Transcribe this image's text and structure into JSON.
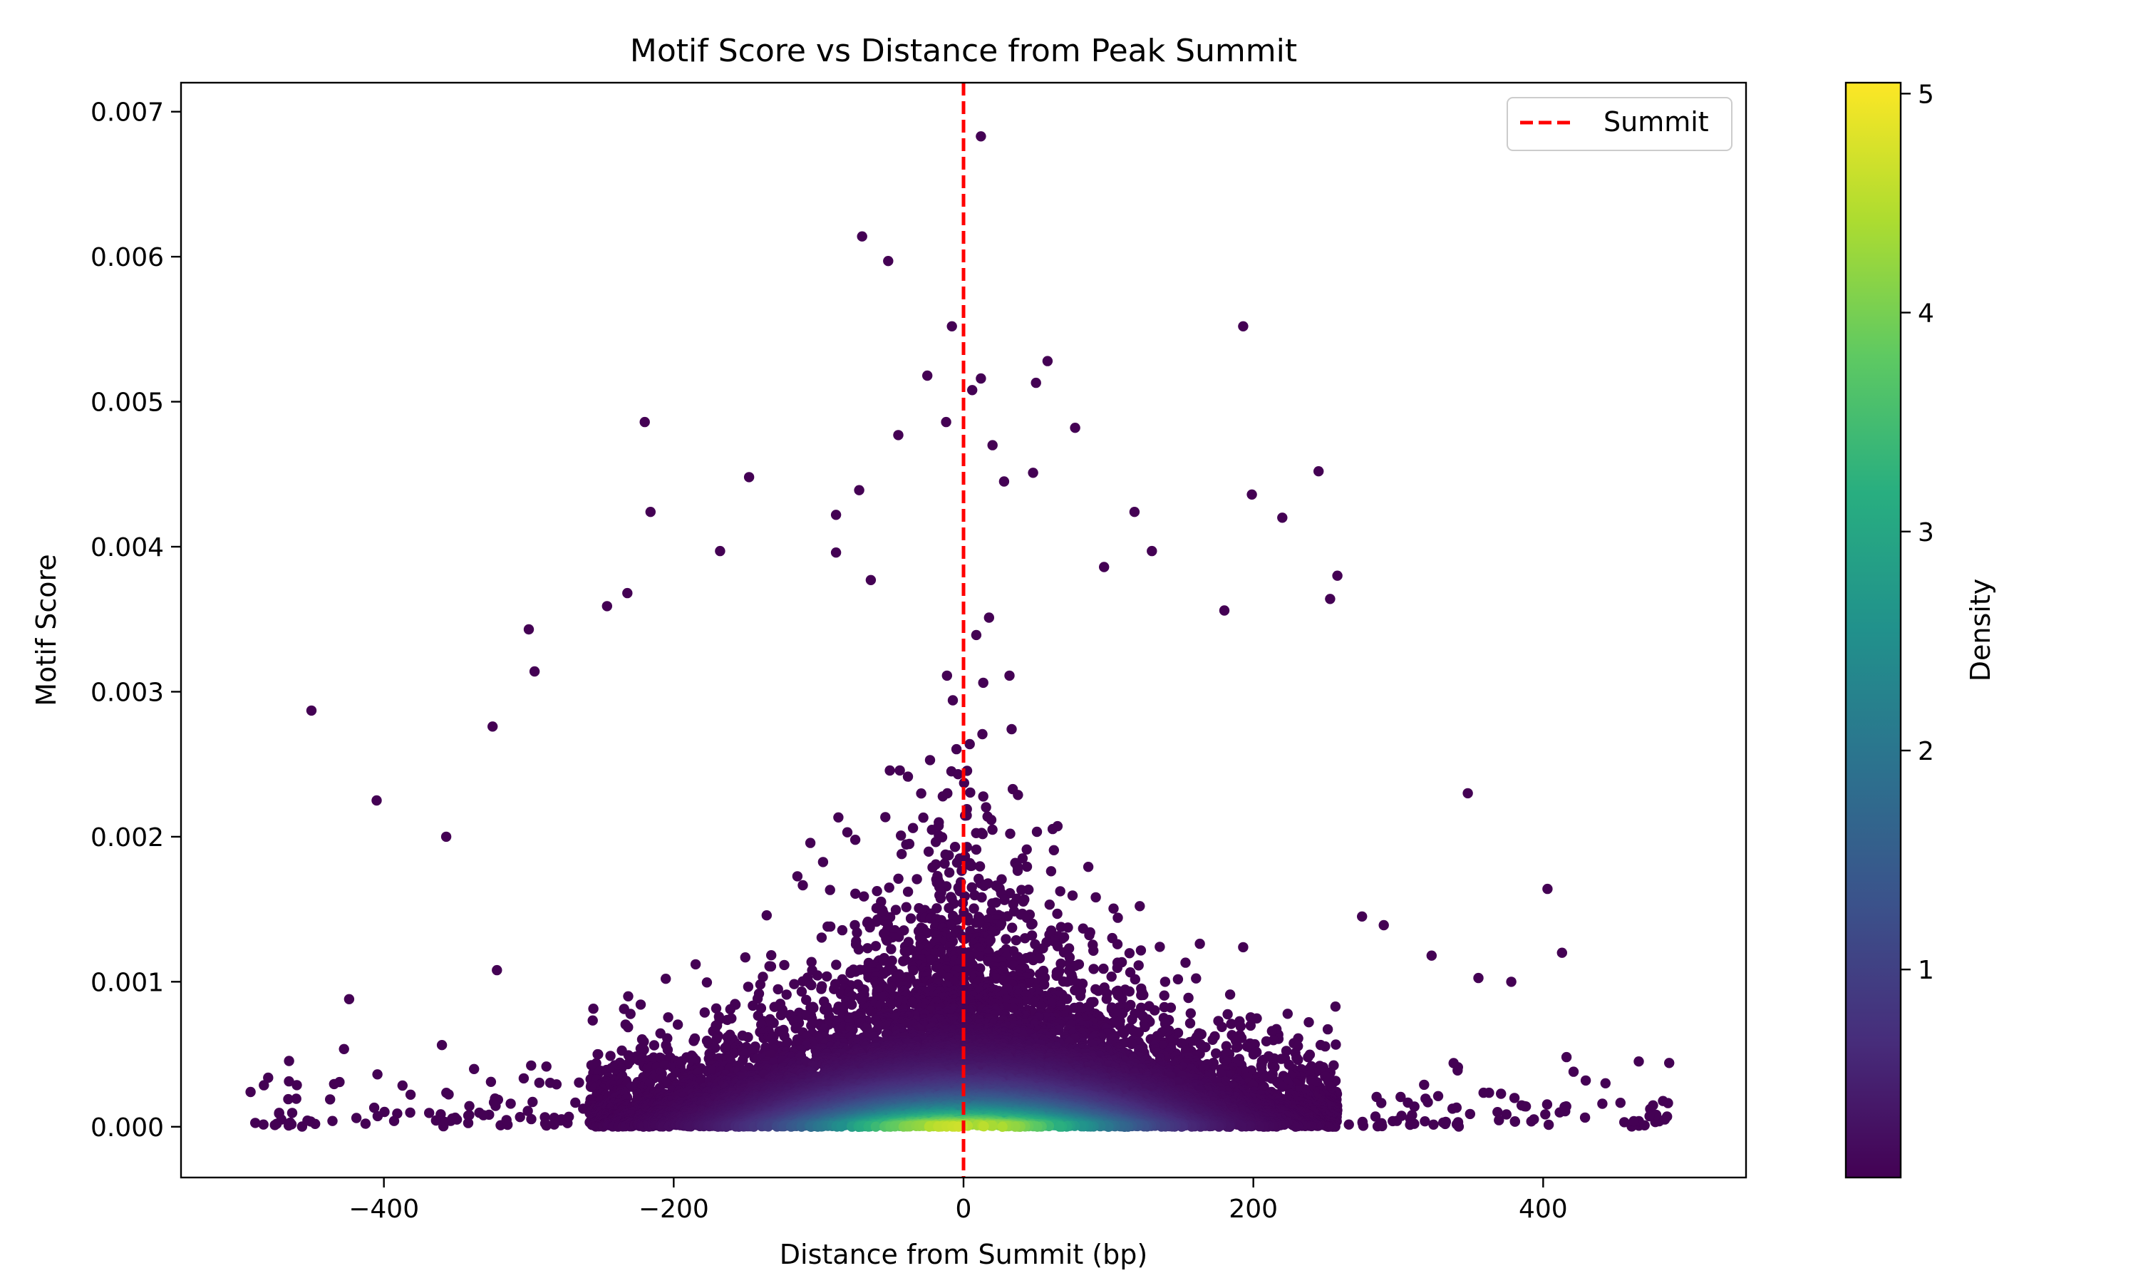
{
  "chart_data": {
    "type": "scatter",
    "title": "Motif Score vs Distance from Peak Summit",
    "xlabel": "Distance from Summit (bp)",
    "ylabel": "Motif Score",
    "xlim": [
      -540,
      540
    ],
    "ylim": [
      -0.00035,
      0.0072
    ],
    "xticks": [
      -400,
      -200,
      0,
      200,
      400
    ],
    "xtick_labels": [
      "−400",
      "−200",
      "0",
      "200",
      "400"
    ],
    "yticks": [
      0.0,
      0.001,
      0.002,
      0.003,
      0.004,
      0.005,
      0.006,
      0.007
    ],
    "ytick_labels": [
      "0.000",
      "0.001",
      "0.002",
      "0.003",
      "0.004",
      "0.005",
      "0.006",
      "0.007"
    ],
    "grid": false,
    "summit_line": {
      "x": 0,
      "color": "#ff0000",
      "style": "dashed",
      "label": "Summit"
    },
    "legend": {
      "position": "upper-right",
      "entries": [
        "Summit"
      ]
    },
    "colorbar": {
      "label": "Density",
      "colormap": "viridis",
      "range": [
        0.05,
        5.05
      ],
      "ticks": [
        1,
        2,
        3,
        4,
        5
      ],
      "tick_labels": [
        "1",
        "2",
        "3",
        "4",
        "5"
      ]
    },
    "point_color_low": "#440154",
    "point_color_high": "#fde725",
    "outlier_points": [
      {
        "x": 12,
        "y": 0.00683
      },
      {
        "x": -70,
        "y": 0.00614
      },
      {
        "x": -52,
        "y": 0.00597
      },
      {
        "x": -8,
        "y": 0.00552
      },
      {
        "x": 193,
        "y": 0.00552
      },
      {
        "x": 58,
        "y": 0.00528
      },
      {
        "x": -25,
        "y": 0.00518
      },
      {
        "x": 12,
        "y": 0.00516
      },
      {
        "x": 50,
        "y": 0.00513
      },
      {
        "x": 6,
        "y": 0.00508
      },
      {
        "x": -220,
        "y": 0.00486
      },
      {
        "x": -12,
        "y": 0.00486
      },
      {
        "x": 77,
        "y": 0.00482
      },
      {
        "x": -45,
        "y": 0.00477
      },
      {
        "x": 20,
        "y": 0.0047
      },
      {
        "x": 245,
        "y": 0.00452
      },
      {
        "x": 48,
        "y": 0.00451
      },
      {
        "x": -148,
        "y": 0.00448
      },
      {
        "x": 28,
        "y": 0.00445
      },
      {
        "x": -72,
        "y": 0.00439
      },
      {
        "x": 199,
        "y": 0.00436
      },
      {
        "x": -216,
        "y": 0.00424
      },
      {
        "x": 118,
        "y": 0.00424
      },
      {
        "x": 220,
        "y": 0.0042
      },
      {
        "x": -88,
        "y": 0.00422
      },
      {
        "x": -168,
        "y": 0.00397
      },
      {
        "x": 130,
        "y": 0.00397
      },
      {
        "x": -88,
        "y": 0.00396
      },
      {
        "x": 258,
        "y": 0.0038
      },
      {
        "x": 97,
        "y": 0.00386
      },
      {
        "x": -64,
        "y": 0.00377
      },
      {
        "x": -232,
        "y": 0.00368
      },
      {
        "x": 180,
        "y": 0.00356
      },
      {
        "x": -246,
        "y": 0.00359
      },
      {
        "x": 253,
        "y": 0.00364
      },
      {
        "x": -300,
        "y": 0.00343
      },
      {
        "x": -450,
        "y": 0.00287
      },
      {
        "x": -325,
        "y": 0.00276
      },
      {
        "x": -296,
        "y": 0.00314
      },
      {
        "x": -405,
        "y": 0.00225
      },
      {
        "x": -357,
        "y": 0.002
      },
      {
        "x": 348,
        "y": 0.0023
      },
      {
        "x": 403,
        "y": 0.00164
      },
      {
        "x": 413,
        "y": 0.0012
      },
      {
        "x": 378,
        "y": 0.001
      },
      {
        "x": 323,
        "y": 0.00118
      },
      {
        "x": 290,
        "y": 0.00139
      },
      {
        "x": 275,
        "y": 0.00145
      },
      {
        "x": -322,
        "y": 0.00108
      },
      {
        "x": -424,
        "y": 0.00088
      },
      {
        "x": -492,
        "y": 0.00024
      },
      {
        "x": -466,
        "y": 0.00019
      },
      {
        "x": -474,
        "y": 2e-05
      },
      {
        "x": 487,
        "y": 0.00044
      },
      {
        "x": 466,
        "y": 0.00045
      },
      {
        "x": 484,
        "y": 5e-05
      },
      {
        "x": 443,
        "y": 0.0003
      },
      {
        "x": 470,
        "y": 1e-05
      }
    ]
  }
}
